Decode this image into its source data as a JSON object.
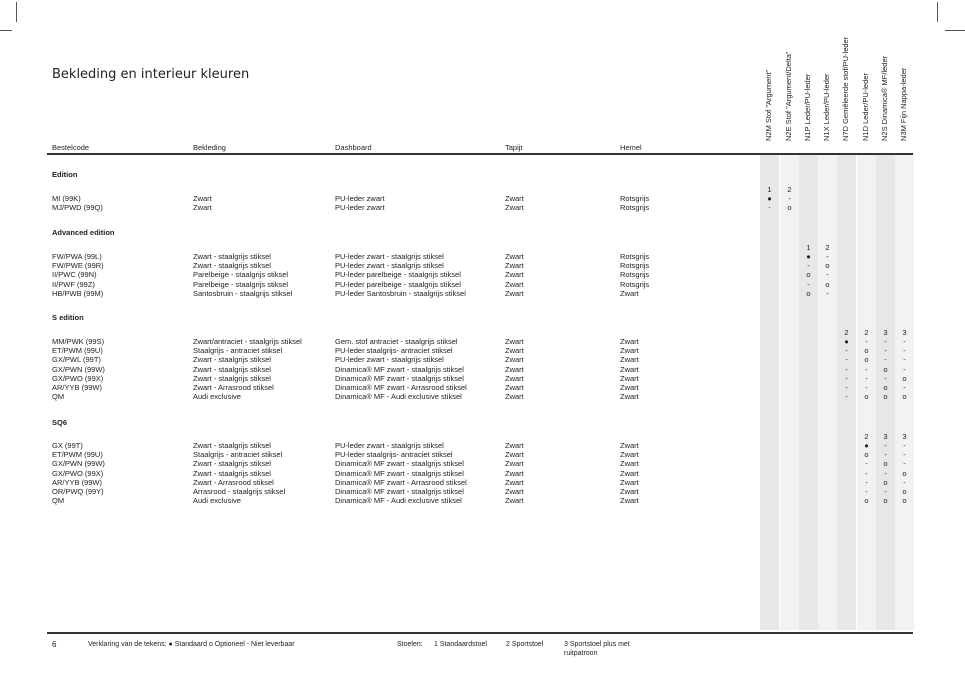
{
  "title": "Bekleding en interieur kleuren",
  "headers": [
    "Bestelcode",
    "Bekleding",
    "Dashboard",
    "Tapijt",
    "Hemel"
  ],
  "upholstery_columns": [
    "N2M Stof \"Argument\"",
    "N2E Stof \"Argument/Delta\"",
    "N1P Leder/PU-leder",
    "N1X Leder/PU-leder",
    "N7D Gemêleerde stof/PU-leder",
    "N1D Leder/PU-leder",
    "N2S Dinamica® MF/leder",
    "N3M Fijn Nappa-leder"
  ],
  "colors": {
    "stripe_dark": "#e6e7e8",
    "stripe_light": "#f1f2f2"
  },
  "sections": [
    {
      "label": "Edition",
      "seat_types": [
        "1",
        "2",
        "",
        "",
        "",
        "",
        "",
        ""
      ],
      "rows": [
        {
          "code": "MI (99K)",
          "bekleding": "Zwart",
          "dashboard": "PU-leder zwart",
          "tapijt": "Zwart",
          "hemel": "Rotsgrijs",
          "marks": [
            "●",
            "-",
            "",
            "",
            "",
            "",
            "",
            ""
          ]
        },
        {
          "code": "MJ/PWD (99Q)",
          "bekleding": "Zwart",
          "dashboard": "PU-leder zwart",
          "tapijt": "Zwart",
          "hemel": "Rotsgrijs",
          "marks": [
            "-",
            "o",
            "",
            "",
            "",
            "",
            "",
            ""
          ]
        }
      ]
    },
    {
      "label": "Advanced edition",
      "seat_types": [
        "",
        "",
        "1",
        "2",
        "",
        "",
        "",
        ""
      ],
      "rows": [
        {
          "code": "FW/PWA (99L)",
          "bekleding": "Zwart - staalgrijs stiksel",
          "dashboard": "PU-leder zwart - staalgrijs stiksel",
          "tapijt": "Zwart",
          "hemel": "Rotsgrijs",
          "marks": [
            "",
            "",
            "●",
            "-",
            "",
            "",
            "",
            ""
          ]
        },
        {
          "code": "FW/PWE (99R)",
          "bekleding": "Zwart - staalgrijs stiksel",
          "dashboard": "PU-leder zwart - staalgrijs stiksel",
          "tapijt": "Zwart",
          "hemel": "Rotsgrijs",
          "marks": [
            "",
            "",
            "-",
            "o",
            "",
            "",
            "",
            ""
          ]
        },
        {
          "code": "II/PWC (99N)",
          "bekleding": "Parelbeige - staalgrijs stiksel",
          "dashboard": "PU-leder parelbeige - staalgrijs stiksel",
          "tapijt": "Zwart",
          "hemel": "Rotsgrijs",
          "marks": [
            "",
            "",
            "o",
            "-",
            "",
            "",
            "",
            ""
          ]
        },
        {
          "code": "II/PWF (99Z)",
          "bekleding": "Parelbeige - staalgrijs stiksel",
          "dashboard": "PU-leder parelbeige - staalgrijs stiksel",
          "tapijt": "Zwart",
          "hemel": "Rotsgrijs",
          "marks": [
            "",
            "",
            "-",
            "o",
            "",
            "",
            "",
            ""
          ]
        },
        {
          "code": "HB/PWB (99M)",
          "bekleding": "Santosbruin - staalgrijs stiksel",
          "dashboard": "PU-leder Santosbruin - staalgrijs stiksel",
          "tapijt": "Zwart",
          "hemel": "Zwart",
          "marks": [
            "",
            "",
            "o",
            "-",
            "",
            "",
            "",
            ""
          ]
        }
      ]
    },
    {
      "label": "S edition",
      "seat_types": [
        "",
        "",
        "",
        "",
        "2",
        "2",
        "3",
        "3"
      ],
      "rows": [
        {
          "code": "MM/PWK (99S)",
          "bekleding": "Zwart/antraciet - staalgrijs stiksel",
          "dashboard": "Gem. stof antraciet - staalgrijs stiksel",
          "tapijt": "Zwart",
          "hemel": "Zwart",
          "marks": [
            "",
            "",
            "",
            "",
            "●",
            "-",
            "-",
            "-"
          ]
        },
        {
          "code": "ET/PWM (99U)",
          "bekleding": "Staalgrijs - antraciet stiksel",
          "dashboard": "PU-leder staalgrijs- antraciet stiksel",
          "tapijt": "Zwart",
          "hemel": "Zwart",
          "marks": [
            "",
            "",
            "",
            "",
            "-",
            "o",
            "-",
            "-"
          ]
        },
        {
          "code": "GX/PWL (99T)",
          "bekleding": "Zwart - staalgrijs stiksel",
          "dashboard": "PU-leder zwart - staalgrijs stiksel",
          "tapijt": "Zwart",
          "hemel": "Zwart",
          "marks": [
            "",
            "",
            "",
            "",
            "-",
            "o",
            "-",
            "-"
          ]
        },
        {
          "code": "GX/PWN (99W)",
          "bekleding": "Zwart - staalgrijs stiksel",
          "dashboard": "Dinamica® MF zwart - staalgrijs stiksel",
          "tapijt": "Zwart",
          "hemel": "Zwart",
          "marks": [
            "",
            "",
            "",
            "",
            "-",
            "-",
            "o",
            "-"
          ]
        },
        {
          "code": "GX/PWO (99X)",
          "bekleding": "Zwart - staalgrijs stiksel",
          "dashboard": "Dinamica® MF zwart - staalgrijs stiksel",
          "tapijt": "Zwart",
          "hemel": "Zwart",
          "marks": [
            "",
            "",
            "",
            "",
            "-",
            "-",
            "-",
            "o"
          ]
        },
        {
          "code": "AR/YYB (99W)",
          "bekleding": "Zwart - Arrasrood stiksel",
          "dashboard": "Dinamica® MF zwart - Arrasrood stiksel",
          "tapijt": "Zwart",
          "hemel": "Zwart",
          "marks": [
            "",
            "",
            "",
            "",
            "-",
            "-",
            "o",
            "-"
          ]
        },
        {
          "code": "QM",
          "bekleding": "Audi exclusive",
          "dashboard": "Dinamica® MF - Audi exclusive stiksel",
          "tapijt": "Zwart",
          "hemel": "Zwart",
          "marks": [
            "",
            "",
            "",
            "",
            "-",
            "o",
            "o",
            "o"
          ]
        }
      ]
    },
    {
      "label": "SQ6",
      "seat_types": [
        "",
        "",
        "",
        "",
        "",
        "2",
        "3",
        "3"
      ],
      "rows": [
        {
          "code": "GX (99T)",
          "bekleding": "Zwart - staalgrijs stiksel",
          "dashboard": "PU-leder zwart - staalgrijs stiksel",
          "tapijt": "Zwart",
          "hemel": "Zwart",
          "marks": [
            "",
            "",
            "",
            "",
            "",
            "●",
            "-",
            "-"
          ]
        },
        {
          "code": "ET/PWM (99U)",
          "bekleding": "Staalgrijs - antraciet stiksel",
          "dashboard": "PU-leder staalgrijs- antraciet stiksel",
          "tapijt": "Zwart",
          "hemel": "Zwart",
          "marks": [
            "",
            "",
            "",
            "",
            "",
            "o",
            "-",
            "-"
          ]
        },
        {
          "code": "GX/PWN (99W)",
          "bekleding": "Zwart - staalgrijs stiksel",
          "dashboard": "Dinamica® MF zwart - staalgrijs stiksel",
          "tapijt": "Zwart",
          "hemel": "Zwart",
          "marks": [
            "",
            "",
            "",
            "",
            "",
            "-",
            "o",
            "-"
          ]
        },
        {
          "code": "GX/PWO (99X)",
          "bekleding": "Zwart - staalgrijs stiksel",
          "dashboard": "Dinamica® MF zwart - staalgrijs stiksel",
          "tapijt": "Zwart",
          "hemel": "Zwart",
          "marks": [
            "",
            "",
            "",
            "",
            "",
            "-",
            "-",
            "o"
          ]
        },
        {
          "code": "AR/YYB (99W)",
          "bekleding": "Zwart - Arrasrood stiksel",
          "dashboard": "Dinamica® MF zwart - Arrasrood stiksel",
          "tapijt": "Zwart",
          "hemel": "Zwart",
          "marks": [
            "",
            "",
            "",
            "",
            "",
            "-",
            "o",
            "-"
          ]
        },
        {
          "code": "OR/PWQ (99Y)",
          "bekleding": "Arrasrood - staalgrijs stiksel",
          "dashboard": "Dinamica® MF zwart - staalgrijs stiksel",
          "tapijt": "Zwart",
          "hemel": "Zwart",
          "marks": [
            "",
            "",
            "",
            "",
            "",
            "-",
            "-",
            "o"
          ]
        },
        {
          "code": "QM",
          "bekleding": "Audi exclusive",
          "dashboard": "Dinamica® MF - Audi exclusive stiksel",
          "tapijt": "Zwart",
          "hemel": "Zwart",
          "marks": [
            "",
            "",
            "",
            "",
            "",
            "o",
            "o",
            "o"
          ]
        }
      ]
    }
  ],
  "footer": {
    "page_number": "6",
    "legend": "Verklaring van de tekens:  ● Standaard  o Optioneel  - Niet leverbaar",
    "seats_label": "Stoelen:",
    "seat1": "1 Standaardstoel",
    "seat2": "2 Sportstoel",
    "seat3": "3 Sportstoel plus met ruitpatroon"
  }
}
